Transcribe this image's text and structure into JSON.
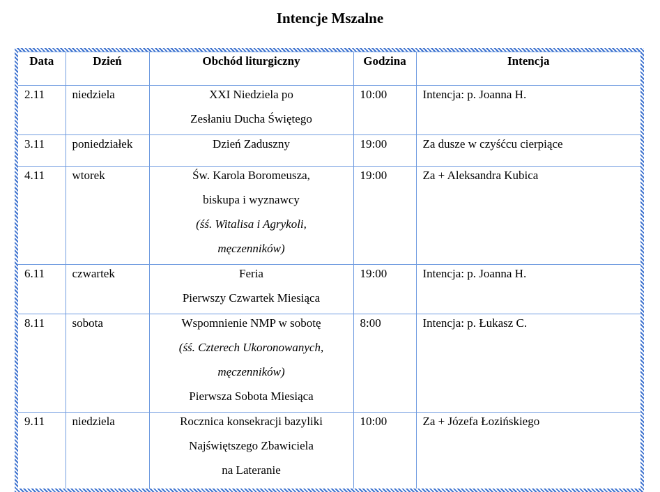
{
  "header": {
    "title": "Intencje Mszalne"
  },
  "table": {
    "headers": [
      "Data",
      "Dzień",
      "Obchód liturgiczny",
      "Godzina",
      "Intencja"
    ],
    "rows": [
      {
        "date": "2.11",
        "day": "niedziela",
        "liturgy": [
          {
            "text": "XXI Niedziela po",
            "italic": false
          },
          {
            "text": "Zesłaniu Ducha Świętego",
            "italic": false
          }
        ],
        "time": "10:00",
        "intention": "Intencja: p. Joanna H."
      },
      {
        "date": "3.11",
        "day": "poniedziałek",
        "liturgy": [
          {
            "text": "Dzień Zaduszny",
            "italic": false
          }
        ],
        "time": "19:00",
        "intention": "Za dusze w czyśćcu cierpiące"
      },
      {
        "date": "4.11",
        "day": "wtorek",
        "liturgy": [
          {
            "text": "Św. Karola Boromeusza,",
            "italic": false
          },
          {
            "text": "biskupa i wyznawcy",
            "italic": false
          },
          {
            "text": "(śś. Witalisa i Agrykoli,",
            "italic": true
          },
          {
            "text": "męczenników)",
            "italic": true
          }
        ],
        "time": "19:00",
        "intention": "Za + Aleksandra Kubica"
      },
      {
        "date": "6.11",
        "day": "czwartek",
        "liturgy": [
          {
            "text": "Feria",
            "italic": false
          },
          {
            "text": "Pierwszy Czwartek Miesiąca",
            "italic": false
          }
        ],
        "time": "19:00",
        "intention": "Intencja: p. Joanna H."
      },
      {
        "date": "8.11",
        "day": "sobota",
        "liturgy": [
          {
            "text": "Wspomnienie NMP w sobotę",
            "italic": false
          },
          {
            "text": "(śś. Czterech Ukoronowanych,",
            "italic": true
          },
          {
            "text": "męczenników)",
            "italic": true
          },
          {
            "text": "Pierwsza Sobota Miesiąca",
            "italic": false
          }
        ],
        "time": "8:00",
        "intention": "Intencja: p. Łukasz C."
      },
      {
        "date": "9.11",
        "day": "niedziela",
        "liturgy": [
          {
            "text": "Rocznica konsekracji bazyliki",
            "italic": false
          },
          {
            "text": "Najświętszego Zbawiciela",
            "italic": false
          },
          {
            "text": "na Lateranie",
            "italic": false
          }
        ],
        "time": "10:00",
        "intention": "Za + Józefa Łozińskiego"
      }
    ]
  }
}
